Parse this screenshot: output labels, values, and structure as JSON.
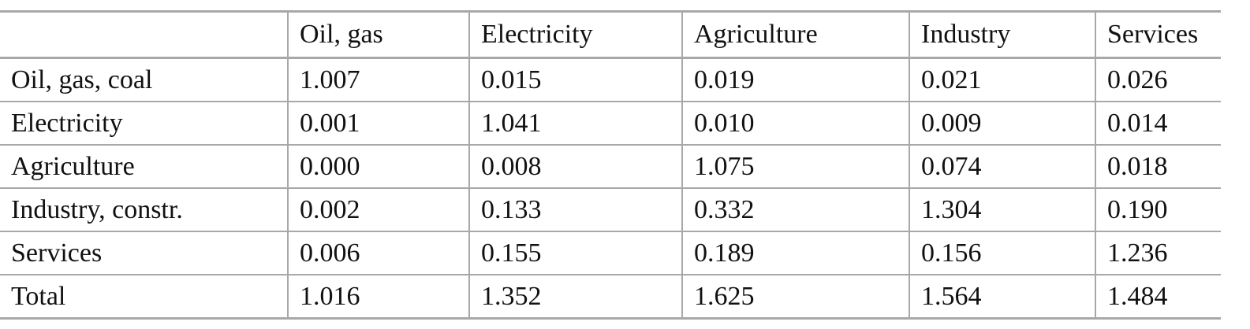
{
  "table": {
    "header": [
      "",
      "Oil, gas",
      "Electricity",
      "Agriculture",
      "Industry",
      "Services"
    ],
    "rows": [
      {
        "label": "Oil, gas, coal",
        "values": [
          "1.007",
          "0.015",
          "0.019",
          "0.021",
          "0.026"
        ]
      },
      {
        "label": "Electricity",
        "values": [
          "0.001",
          "1.041",
          "0.010",
          "0.009",
          "0.014"
        ]
      },
      {
        "label": "Agriculture",
        "values": [
          "0.000",
          "0.008",
          "1.075",
          "0.074",
          "0.018"
        ]
      },
      {
        "label": "Industry, constr.",
        "values": [
          "0.002",
          "0.133",
          "0.332",
          "1.304",
          "0.190"
        ]
      },
      {
        "label": "Services",
        "values": [
          "0.006",
          "0.155",
          "0.189",
          "0.156",
          "1.236"
        ]
      },
      {
        "label": "Total",
        "values": [
          "1.016",
          "1.352",
          "1.625",
          "1.564",
          "1.484"
        ]
      }
    ]
  }
}
